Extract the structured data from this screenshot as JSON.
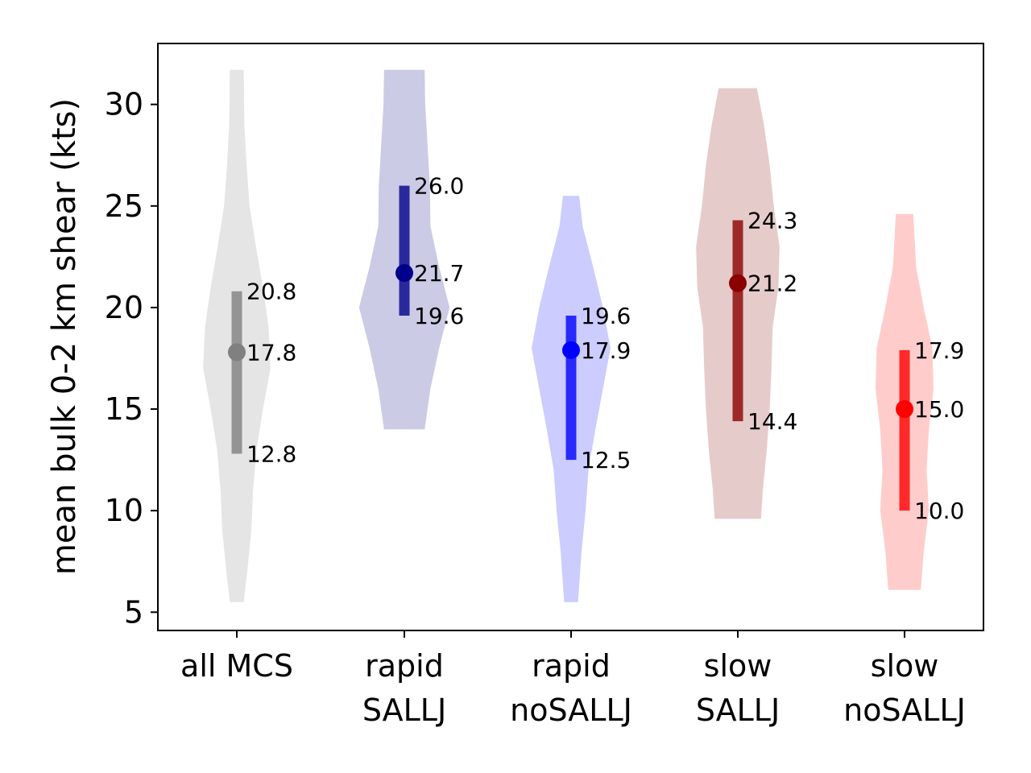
{
  "chart_data": {
    "type": "violin",
    "title": "",
    "xlabel": "",
    "ylabel": "mean bulk 0-2 km shear (kts)",
    "ylim": [
      4.1,
      33.0
    ],
    "yticks": [
      5,
      10,
      15,
      20,
      25,
      30
    ],
    "grid": false,
    "categories": [
      {
        "label_lines": [
          "all MCS"
        ],
        "color": "#808080",
        "fill": "#e5e5e5",
        "median": 17.8,
        "q_low": 12.8,
        "q_high": 20.8,
        "median_label": "17.8",
        "low_label": "12.8",
        "high_label": "20.8",
        "min": 5.5,
        "max": 31.7,
        "density": [
          [
            5.5,
            0.12
          ],
          [
            7,
            0.18
          ],
          [
            9,
            0.25
          ],
          [
            11,
            0.28
          ],
          [
            13,
            0.34
          ],
          [
            15,
            0.45
          ],
          [
            17,
            0.58
          ],
          [
            19,
            0.55
          ],
          [
            21,
            0.45
          ],
          [
            23,
            0.33
          ],
          [
            25,
            0.22
          ],
          [
            27,
            0.17
          ],
          [
            29,
            0.13
          ],
          [
            31.7,
            0.12
          ]
        ]
      },
      {
        "label_lines": [
          "rapid",
          "SALLJ"
        ],
        "color": "#00008b",
        "fill": "#cbcbe6",
        "median": 21.7,
        "q_low": 19.6,
        "q_high": 26.0,
        "median_label": "21.7",
        "low_label": "19.6",
        "high_label": "26.0",
        "min": 14.0,
        "max": 31.7,
        "density": [
          [
            14,
            0.35
          ],
          [
            16,
            0.45
          ],
          [
            18,
            0.6
          ],
          [
            20,
            0.78
          ],
          [
            22,
            0.6
          ],
          [
            24,
            0.45
          ],
          [
            26,
            0.44
          ],
          [
            28,
            0.4
          ],
          [
            30,
            0.36
          ],
          [
            31.7,
            0.35
          ]
        ]
      },
      {
        "label_lines": [
          "rapid",
          "noSALLJ"
        ],
        "color": "#0000ff",
        "fill": "#ccccff",
        "median": 17.9,
        "q_low": 12.5,
        "q_high": 19.6,
        "median_label": "17.9",
        "low_label": "12.5",
        "high_label": "19.6",
        "min": 5.5,
        "max": 25.5,
        "density": [
          [
            5.5,
            0.12
          ],
          [
            8,
            0.18
          ],
          [
            10,
            0.25
          ],
          [
            12,
            0.3
          ],
          [
            14,
            0.42
          ],
          [
            16,
            0.55
          ],
          [
            18,
            0.68
          ],
          [
            20,
            0.55
          ],
          [
            22,
            0.38
          ],
          [
            24,
            0.2
          ],
          [
            25.5,
            0.14
          ]
        ]
      },
      {
        "label_lines": [
          "slow",
          "SALLJ"
        ],
        "color": "#8b0000",
        "fill": "#e6cbcb",
        "median": 21.2,
        "q_low": 14.4,
        "q_high": 24.3,
        "median_label": "21.2",
        "low_label": "14.4",
        "high_label": "24.3",
        "min": 9.6,
        "max": 30.8,
        "density": [
          [
            9.6,
            0.4
          ],
          [
            11,
            0.43
          ],
          [
            13,
            0.5
          ],
          [
            15,
            0.55
          ],
          [
            17,
            0.58
          ],
          [
            19,
            0.6
          ],
          [
            21,
            0.7
          ],
          [
            23,
            0.72
          ],
          [
            25,
            0.62
          ],
          [
            27,
            0.55
          ],
          [
            29,
            0.45
          ],
          [
            30.8,
            0.33
          ]
        ]
      },
      {
        "label_lines": [
          "slow",
          "noSALLJ"
        ],
        "color": "#ff0000",
        "fill": "#ffcccc",
        "median": 15.0,
        "q_low": 10.0,
        "q_high": 17.9,
        "median_label": "15.0",
        "low_label": "10.0",
        "high_label": "17.9",
        "min": 6.1,
        "max": 24.6,
        "density": [
          [
            6.1,
            0.28
          ],
          [
            8,
            0.33
          ],
          [
            10,
            0.42
          ],
          [
            12,
            0.38
          ],
          [
            14,
            0.42
          ],
          [
            16,
            0.5
          ],
          [
            18,
            0.48
          ],
          [
            20,
            0.33
          ],
          [
            22,
            0.2
          ],
          [
            24.6,
            0.15
          ]
        ]
      }
    ]
  }
}
